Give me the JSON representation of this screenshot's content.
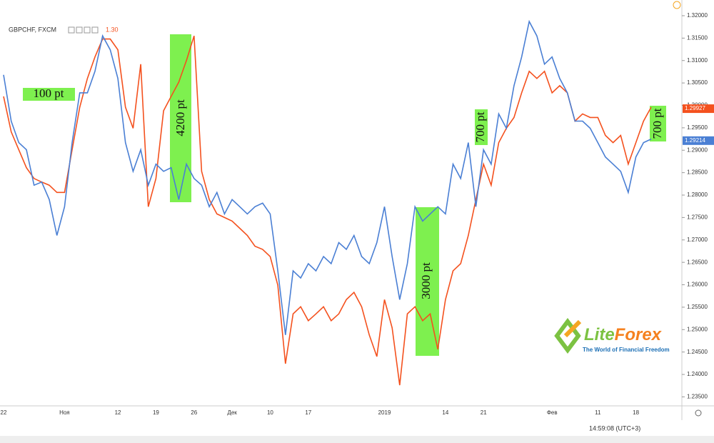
{
  "chart_data": {
    "type": "line",
    "symbol": "GBPCHF, FXCM",
    "price": "1.30",
    "categories": [
      "22",
      null,
      null,
      null,
      null,
      null,
      null,
      null,
      "Ноя",
      null,
      null,
      null,
      null,
      null,
      null,
      "12",
      null,
      null,
      null,
      null,
      "19",
      null,
      null,
      null,
      null,
      "26",
      null,
      null,
      null,
      null,
      "Дек",
      null,
      null,
      null,
      null,
      "10",
      null,
      null,
      null,
      null,
      "17",
      null,
      null,
      null,
      null,
      null,
      null,
      null,
      null,
      null,
      "2019",
      null,
      null,
      null,
      null,
      null,
      null,
      null,
      "14",
      null,
      null,
      null,
      null,
      "21",
      null,
      null,
      null,
      null,
      null,
      null,
      null,
      null,
      "Фев",
      null,
      null,
      null,
      null,
      null,
      "11",
      null,
      null,
      null,
      null,
      "18",
      null,
      null
    ],
    "series": [
      {
        "color": "#f4511e",
        "last_value": 1.29927,
        "values": [
          1.302,
          1.2941,
          1.2901,
          1.2861,
          1.2837,
          1.2829,
          1.2822,
          1.2806,
          1.2806,
          1.2901,
          1.2996,
          1.306,
          1.3108,
          1.3148,
          1.3148,
          1.3124,
          1.2996,
          1.2949,
          1.3092,
          1.2774,
          1.2837,
          1.2988,
          1.302,
          1.3052,
          1.31,
          1.3155,
          1.2853,
          1.279,
          1.2758,
          1.275,
          1.2742,
          1.2726,
          1.271,
          1.2686,
          1.2679,
          1.2663,
          1.2599,
          1.2424,
          1.2535,
          1.2551,
          1.252,
          1.2535,
          1.2551,
          1.252,
          1.2535,
          1.2567,
          1.2583,
          1.2551,
          1.2488,
          1.244,
          1.2567,
          1.2504,
          1.2376,
          1.2535,
          1.2551,
          1.252,
          1.2535,
          1.2456,
          1.2567,
          1.2631,
          1.2647,
          1.271,
          1.279,
          1.2869,
          1.2822,
          1.2917,
          1.2949,
          1.2973,
          1.3028,
          1.3076,
          1.306,
          1.3076,
          1.3028,
          1.3044,
          1.3028,
          1.2965,
          1.2981,
          1.2973,
          1.2973,
          1.2933,
          1.2917,
          1.2933,
          1.2869,
          1.2917,
          1.2965,
          1.2996
        ]
      },
      {
        "color": "#4a7fd4",
        "last_value": 1.29214,
        "values": [
          1.3068,
          1.2965,
          1.2917,
          1.2901,
          1.2822,
          1.2829,
          1.279,
          1.271,
          1.2774,
          1.2917,
          1.3028,
          1.3028,
          1.3076,
          1.3155,
          1.3124,
          1.306,
          1.2917,
          1.2853,
          1.2901,
          1.2822,
          1.2869,
          1.2853,
          1.2861,
          1.279,
          1.2869,
          1.2837,
          1.2822,
          1.2774,
          1.2806,
          1.2758,
          1.279,
          1.2774,
          1.2758,
          1.2774,
          1.2782,
          1.2758,
          1.2631,
          1.2488,
          1.2631,
          1.2615,
          1.2647,
          1.2631,
          1.2663,
          1.2647,
          1.2694,
          1.2679,
          1.271,
          1.2663,
          1.2647,
          1.2694,
          1.2774,
          1.2663,
          1.2567,
          1.2647,
          1.2774,
          1.2742,
          1.2758,
          1.2774,
          1.2758,
          1.2869,
          1.2837,
          1.2917,
          1.2774,
          1.2901,
          1.2869,
          1.2981,
          1.2949,
          1.3044,
          1.3108,
          1.3187,
          1.3155,
          1.3092,
          1.3108,
          1.306,
          1.3028,
          1.2965,
          1.2965,
          1.2949,
          1.2917,
          1.2885,
          1.2869,
          1.2853,
          1.2806,
          1.2885,
          1.2917,
          1.2925
        ]
      }
    ],
    "ylim": [
      1.233,
      1.3235
    ],
    "yticks": [
      {
        "value": 1.235,
        "label": "1.23500"
      },
      {
        "value": 1.24,
        "label": "1.24000"
      },
      {
        "value": 1.245,
        "label": "1.24500"
      },
      {
        "value": 1.25,
        "label": "1.25000"
      },
      {
        "value": 1.255,
        "label": "1.25500"
      },
      {
        "value": 1.26,
        "label": "1.26000"
      },
      {
        "value": 1.265,
        "label": "1.26500"
      },
      {
        "value": 1.27,
        "label": "1.27000"
      },
      {
        "value": 1.275,
        "label": "1.27500"
      },
      {
        "value": 1.28,
        "label": "1.28000"
      },
      {
        "value": 1.285,
        "label": "1.28500"
      },
      {
        "value": 1.29,
        "label": "1.29000"
      },
      {
        "value": 1.295,
        "label": "1.29500"
      },
      {
        "value": 1.3,
        "label": "1.30000"
      },
      {
        "value": 1.305,
        "label": "1.30500"
      },
      {
        "value": 1.31,
        "label": "1.31000"
      },
      {
        "value": 1.315,
        "label": "1.31500"
      },
      {
        "value": 1.32,
        "label": "1.32000"
      }
    ],
    "grid": false,
    "annotations": [
      "100 pt",
      "4200 pt",
      "3000 pt",
      "700 pt",
      "700 pt"
    ]
  },
  "logo": {
    "name_1": "Lite",
    "name_2": "Forex",
    "tagline": "The World of Financial Freedom"
  },
  "footer": {
    "time": "14:59:08 (UTC+3)"
  }
}
